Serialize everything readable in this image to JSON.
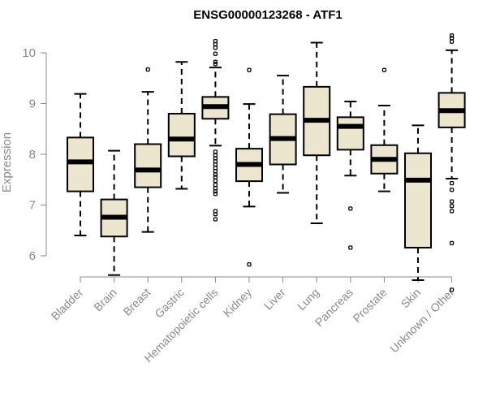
{
  "chart_data": {
    "type": "box",
    "title": "ENSG00000123268 - ATF1",
    "xlabel": "",
    "ylabel": "Expression",
    "ylim": [
      5.25,
      10.6
    ],
    "yticks": [
      6,
      7,
      8,
      9,
      10
    ],
    "box_fill": "#ede6cf",
    "categories": [
      "Bladder",
      "Brain",
      "Breast",
      "Gastric",
      "Hematopoietic cells",
      "Kidney",
      "Liver",
      "Lung",
      "Pancreas",
      "Prostate",
      "Skin",
      "Unknown / Other"
    ],
    "series": [
      {
        "min": 6.4,
        "q1": 7.27,
        "median": 7.85,
        "q3": 8.33,
        "max": 9.19,
        "outliers": []
      },
      {
        "min": 5.62,
        "q1": 6.38,
        "median": 6.76,
        "q3": 7.11,
        "max": 8.07,
        "outliers": []
      },
      {
        "min": 6.47,
        "q1": 7.35,
        "median": 7.69,
        "q3": 8.2,
        "max": 9.23,
        "outliers": [
          9.67
        ]
      },
      {
        "min": 7.32,
        "q1": 7.96,
        "median": 8.3,
        "q3": 8.8,
        "max": 9.82,
        "outliers": []
      },
      {
        "min": 8.17,
        "q1": 8.7,
        "median": 8.94,
        "q3": 9.13,
        "max": 9.71,
        "outliers": [
          10.23,
          10.17,
          10.1,
          9.98,
          9.82,
          9.78,
          8.05,
          7.98,
          7.92,
          7.86,
          7.8,
          7.73,
          7.67,
          7.6,
          7.55,
          7.48,
          7.4,
          7.33,
          7.27,
          7.22,
          6.88,
          6.82,
          6.72
        ]
      },
      {
        "min": 6.97,
        "q1": 7.47,
        "median": 7.8,
        "q3": 8.11,
        "max": 8.99,
        "outliers": [
          9.66,
          5.83
        ]
      },
      {
        "min": 7.24,
        "q1": 7.8,
        "median": 8.31,
        "q3": 8.79,
        "max": 9.55,
        "outliers": []
      },
      {
        "min": 6.64,
        "q1": 7.98,
        "median": 8.67,
        "q3": 9.33,
        "max": 10.2,
        "outliers": []
      },
      {
        "min": 7.58,
        "q1": 8.09,
        "median": 8.55,
        "q3": 8.73,
        "max": 9.04,
        "outliers": [
          6.93,
          6.16
        ]
      },
      {
        "min": 7.27,
        "q1": 7.62,
        "median": 7.9,
        "q3": 8.18,
        "max": 8.96,
        "outliers": [
          9.66
        ]
      },
      {
        "min": 5.52,
        "q1": 6.16,
        "median": 7.49,
        "q3": 8.02,
        "max": 8.57,
        "outliers": []
      },
      {
        "min": 7.52,
        "q1": 8.53,
        "median": 8.86,
        "q3": 9.21,
        "max": 10.05,
        "outliers": [
          10.34,
          10.29,
          10.22,
          7.43,
          7.3,
          7.07,
          6.98,
          6.88,
          6.25,
          5.33
        ]
      }
    ]
  }
}
